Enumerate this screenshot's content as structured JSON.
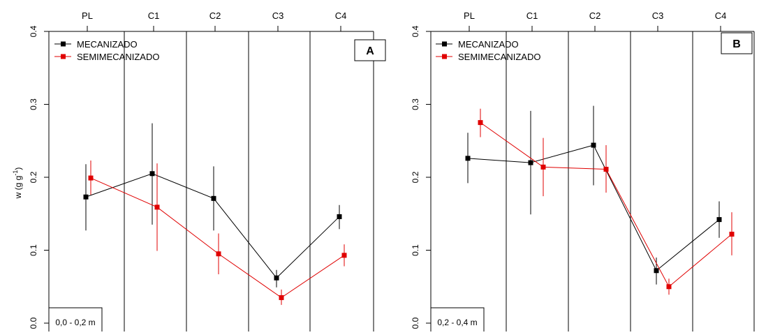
{
  "y_axis_label_main": "w (g g",
  "y_axis_label_sup": "-1",
  "y_axis_label_tail": ")",
  "chart_data": [
    {
      "type": "line",
      "panel_label": "A",
      "depth_label": "0,0 - 0,2 m",
      "categories": [
        "PL",
        "C1",
        "C2",
        "C3",
        "C4"
      ],
      "ylim": [
        0,
        0.4
      ],
      "y_ticks": [
        "0.0",
        "0.1",
        "0.2",
        "0.3",
        "0.4"
      ],
      "legend_position": "top-left",
      "grid": false,
      "series": [
        {
          "name": "MECANIZADO",
          "color": "#000000",
          "values": [
            0.173,
            0.205,
            0.171,
            0.062,
            0.146
          ],
          "err_low": [
            0.127,
            0.135,
            0.127,
            0.049,
            0.129
          ],
          "err_high": [
            0.218,
            0.274,
            0.215,
            0.073,
            0.162
          ]
        },
        {
          "name": "SEMIMECANIZADO",
          "color": "#e00000",
          "values": [
            0.199,
            0.159,
            0.095,
            0.035,
            0.093
          ],
          "err_low": [
            0.176,
            0.099,
            0.067,
            0.025,
            0.078
          ],
          "err_high": [
            0.223,
            0.219,
            0.123,
            0.046,
            0.108
          ]
        }
      ]
    },
    {
      "type": "line",
      "panel_label": "B",
      "depth_label": "0,2 - 0,4 m",
      "categories": [
        "PL",
        "C1",
        "C2",
        "C3",
        "C4"
      ],
      "ylim": [
        0,
        0.4
      ],
      "y_ticks": [
        "0.0",
        "0.1",
        "0.2",
        "0.3",
        "0.4"
      ],
      "legend_position": "top-left",
      "grid": false,
      "series": [
        {
          "name": "MECANIZADO",
          "color": "#000000",
          "values": [
            0.226,
            0.22,
            0.244,
            0.072,
            0.142
          ],
          "err_low": [
            0.192,
            0.149,
            0.189,
            0.053,
            0.117
          ],
          "err_high": [
            0.261,
            0.291,
            0.298,
            0.09,
            0.167
          ]
        },
        {
          "name": "SEMIMECANIZADO",
          "color": "#e00000",
          "values": [
            0.275,
            0.214,
            0.211,
            0.05,
            0.122
          ],
          "err_low": [
            0.255,
            0.174,
            0.179,
            0.039,
            0.093
          ],
          "err_high": [
            0.294,
            0.254,
            0.244,
            0.061,
            0.152
          ]
        }
      ]
    }
  ]
}
